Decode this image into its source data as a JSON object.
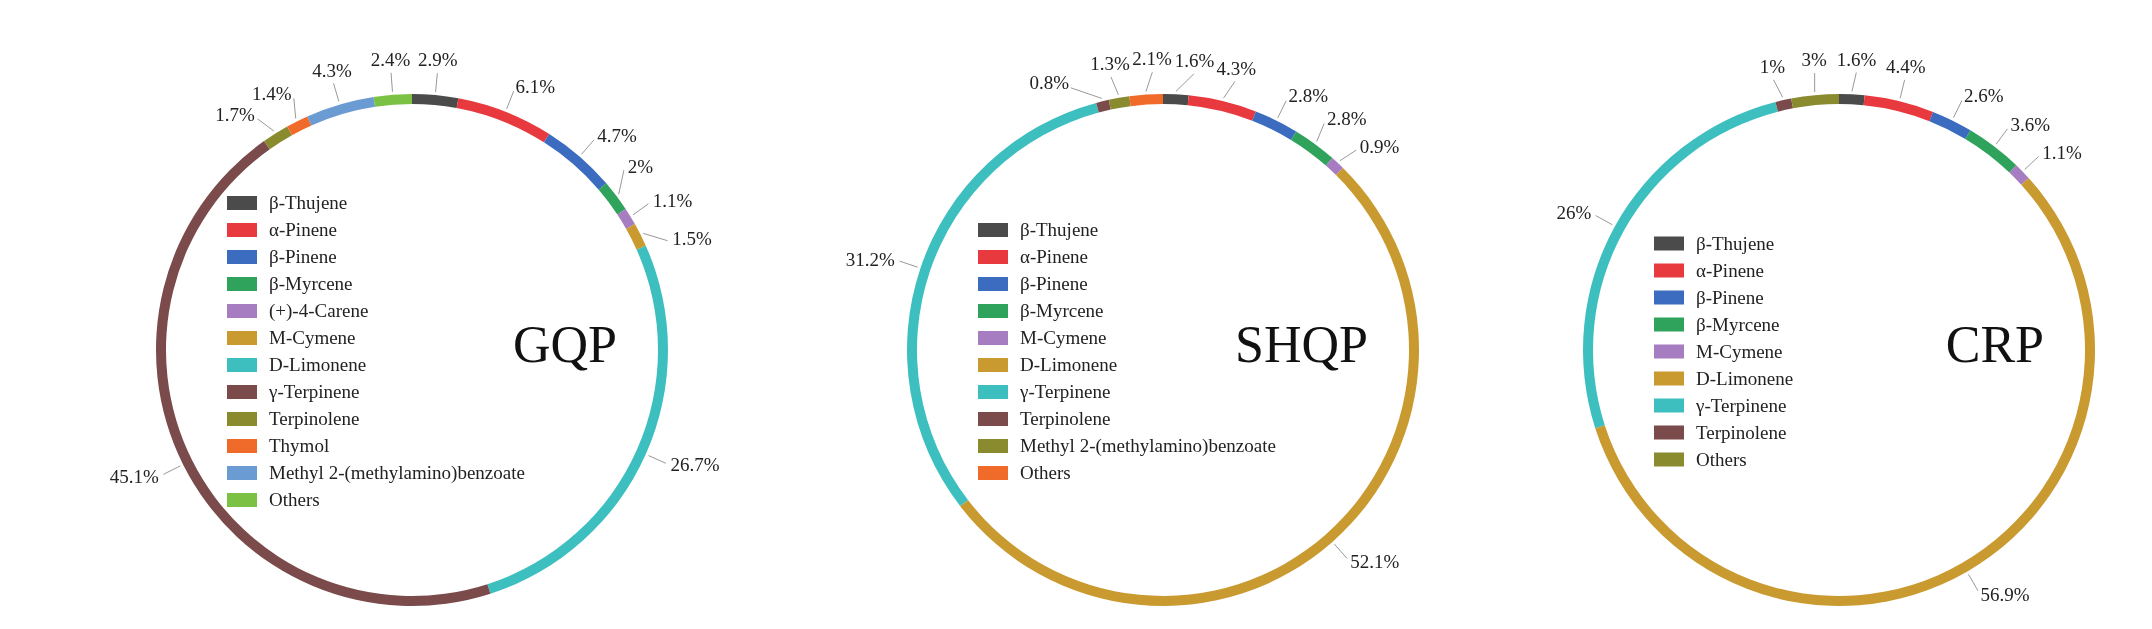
{
  "chart_data": [
    {
      "type": "donut",
      "title": "GQP",
      "legend": "left",
      "categories": [
        "β-Thujene",
        "α-Pinene",
        "β-Pinene",
        "β-Myrcene",
        "(+)-4-Carene",
        "M-Cymene",
        "D-Limonene",
        "γ-Terpinene",
        "Terpinolene",
        "Thymol",
        "Methyl 2-(methylamino)benzoate",
        "Others"
      ],
      "values": [
        2.9,
        6.1,
        4.7,
        2,
        1.1,
        1.5,
        26.7,
        45.1,
        1.7,
        1.4,
        4.3,
        2.4
      ],
      "value_labels": [
        "2.9%",
        "6.1%",
        "4.7%",
        "2%",
        "1.1%",
        "1.5%",
        "26.7%",
        "45.1%",
        "1.7%",
        "1.4%",
        "4.3%",
        "2.4%"
      ],
      "colors": [
        "#4b4b4b",
        "#e8393f",
        "#3b6cc0",
        "#2fa35c",
        "#a67dc1",
        "#c99a2f",
        "#3dbfc0",
        "#7b4a4b",
        "#8a8b2f",
        "#f06a2a",
        "#6a9bd2",
        "#7bc144"
      ]
    },
    {
      "type": "donut",
      "title": "SHQP",
      "legend": "left",
      "categories": [
        "β-Thujene",
        "α-Pinene",
        "β-Pinene",
        "β-Myrcene",
        "M-Cymene",
        "D-Limonene",
        "γ-Terpinene",
        "Terpinolene",
        "Methyl 2-(methylamino)benzoate",
        "Others"
      ],
      "values": [
        1.6,
        4.3,
        2.8,
        2.8,
        0.9,
        52.1,
        31.2,
        0.8,
        1.3,
        2.1
      ],
      "value_labels": [
        "1.6%",
        "4.3%",
        "2.8%",
        "2.8%",
        "0.9%",
        "52.1%",
        "31.2%",
        "0.8%",
        "1.3%",
        "2.1%"
      ],
      "colors": [
        "#4b4b4b",
        "#e8393f",
        "#3b6cc0",
        "#2fa35c",
        "#a67dc1",
        "#c99a2f",
        "#3dbfc0",
        "#7b4a4b",
        "#8a8b2f",
        "#f06a2a"
      ]
    },
    {
      "type": "donut",
      "title": "CRP",
      "legend": "left",
      "categories": [
        "β-Thujene",
        "α-Pinene",
        "β-Pinene",
        "β-Myrcene",
        "M-Cymene",
        "D-Limonene",
        "γ-Terpinene",
        "Terpinolene",
        "Others"
      ],
      "values": [
        1.6,
        4.4,
        2.6,
        3.6,
        1.1,
        56.9,
        26,
        1,
        3
      ],
      "value_labels": [
        "1.6%",
        "4.4%",
        "2.6%",
        "3.6%",
        "1.1%",
        "56.9%",
        "26%",
        "1%",
        "3%"
      ],
      "colors": [
        "#4b4b4b",
        "#e8393f",
        "#3b6cc0",
        "#2fa35c",
        "#a67dc1",
        "#c99a2f",
        "#3dbfc0",
        "#7b4a4b",
        "#8a8b2f"
      ]
    }
  ]
}
